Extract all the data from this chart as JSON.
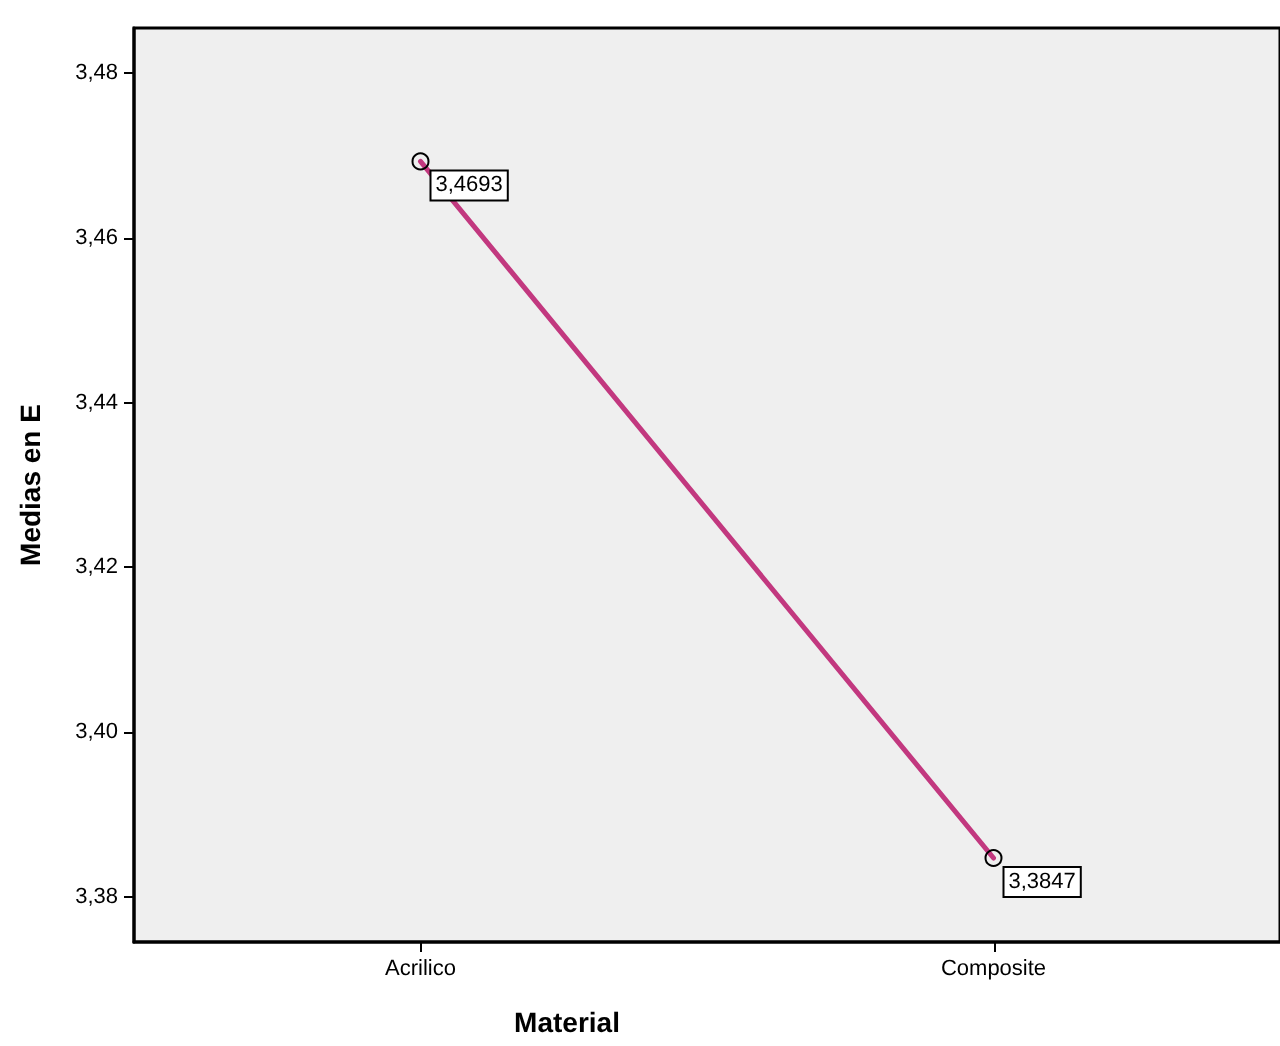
{
  "chart_data": {
    "type": "line",
    "xlabel": "Material",
    "ylabel": "Medias en E",
    "categories": [
      "Acrilico",
      "Composite"
    ],
    "series": [
      {
        "color": "#c2387f",
        "values": [
          3.4693,
          3.3847
        ],
        "value_labels": [
          "3,4693",
          "3,3847"
        ]
      }
    ],
    "ylim": [
      3.3745,
      3.4855
    ],
    "yticks": [
      {
        "value": 3.38,
        "label": "3,38"
      },
      {
        "value": 3.4,
        "label": "3,40"
      },
      {
        "value": 3.42,
        "label": "3,42"
      },
      {
        "value": 3.44,
        "label": "3,44"
      },
      {
        "value": 3.46,
        "label": "3,46"
      },
      {
        "value": 3.48,
        "label": "3,48"
      }
    ],
    "grid": false,
    "marker": "circle",
    "line_style": "solid"
  }
}
